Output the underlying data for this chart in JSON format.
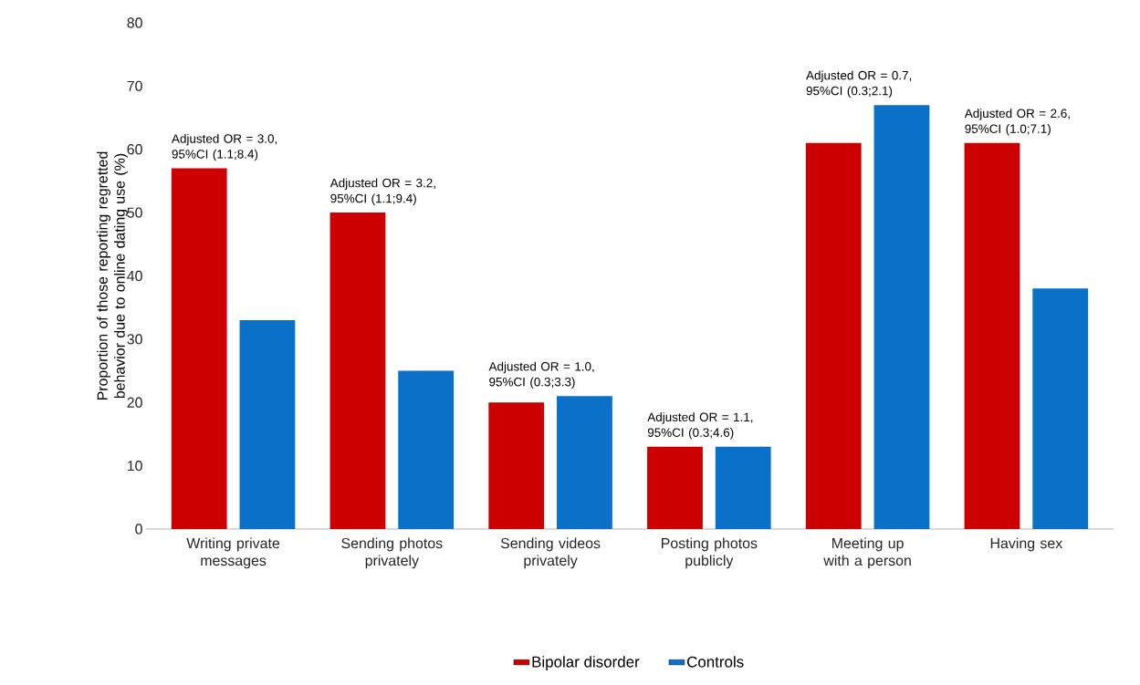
{
  "chart_data": {
    "type": "bar",
    "ylabel": "Proportion of those reporting regretted behavior due to online dating use (%)",
    "categories": [
      "Writing private messages",
      "Sending photos privately",
      "Sending videos privately",
      "Posting photos publicly",
      "Meeting up with a person",
      "Having sex"
    ],
    "series": [
      {
        "name": "Bipolar disorder",
        "color": "#cc0000",
        "values": [
          57,
          50,
          20,
          13,
          61,
          61
        ]
      },
      {
        "name": "Controls",
        "color": "#0a70c8",
        "values": [
          33,
          25,
          21,
          13,
          67,
          38
        ]
      }
    ],
    "ylim": [
      0,
      80
    ],
    "yticks": [
      0,
      10,
      20,
      30,
      40,
      50,
      60,
      70,
      80
    ],
    "annotations": [
      "Adjusted OR = 3.0, 95%CI (1.1;8.4)",
      "Adjusted OR = 3.2, 95%CI (1.1;9.4)",
      "Adjusted OR = 1.0, 95%CI (0.3;3.3)",
      "Adjusted OR = 1.1, 95%CI (0.3;4.6)",
      "Adjusted OR = 0.7, 95%CI (0.3;2.1)",
      "Adjusted OR = 2.6, 95%CI (1.0;7.1)"
    ],
    "grid": false,
    "legend": "bottom"
  }
}
